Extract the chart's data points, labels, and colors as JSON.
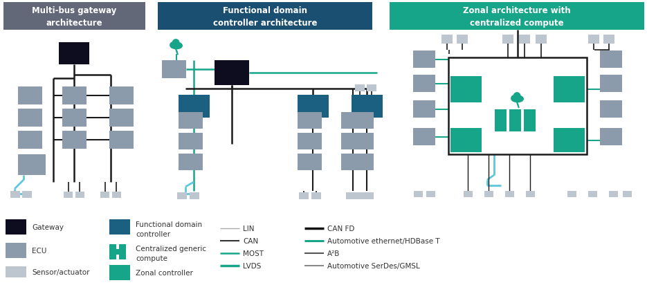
{
  "title1": "Multi-bus gateway\narchitecture",
  "title2": "Functional domain\ncontroller architecture",
  "title3": "Zonal architecture with\ncentralized compute",
  "color_header1": "#626878",
  "color_header2": "#1b4f72",
  "color_header3": "#17a589",
  "color_gateway": "#0d0d1f",
  "color_domain_ctrl": "#1b6080",
  "color_ecu": "#8c9bab",
  "color_sensor": "#bdc6ce",
  "color_zonal": "#17a589",
  "color_centralized": "#17a589",
  "color_line_black": "#1a1a1a",
  "color_line_teal": "#17a589",
  "color_line_light_blue": "#5bc8dc",
  "color_line_gray": "#aaaaaa",
  "bg_color": "#ffffff"
}
